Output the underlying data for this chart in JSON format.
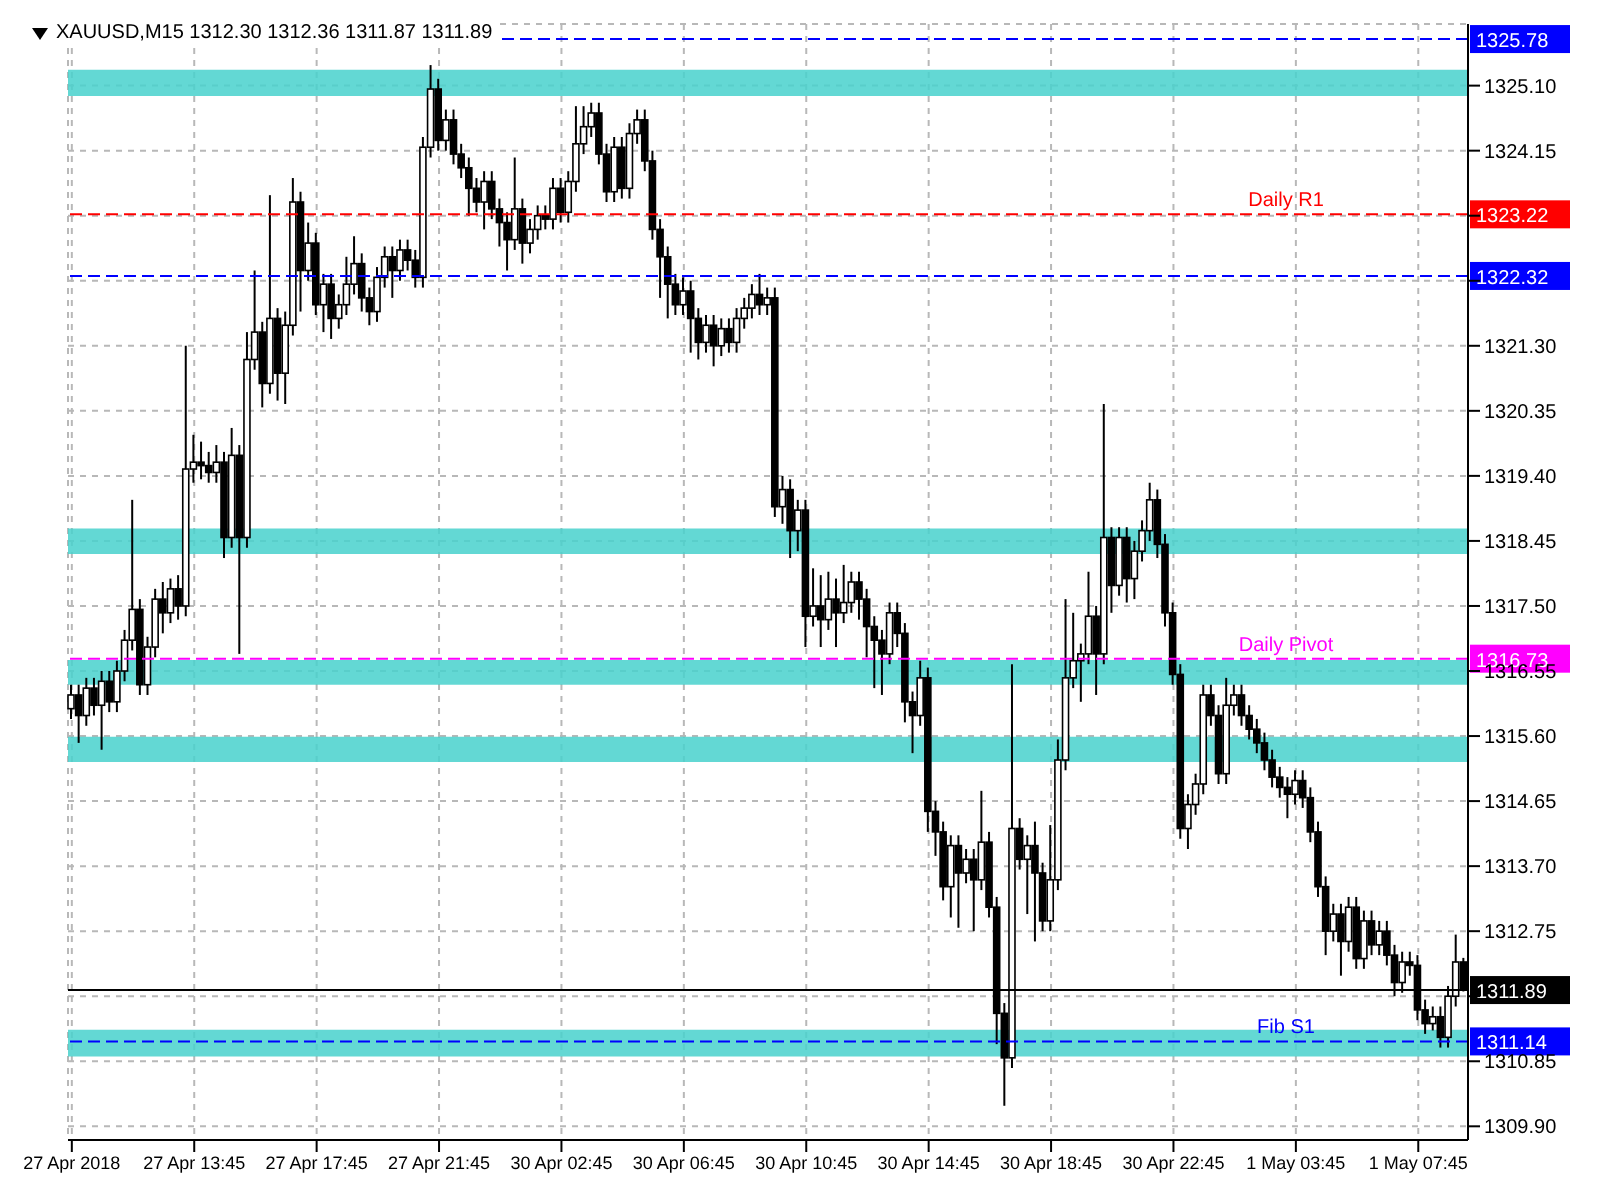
{
  "chart_data": {
    "type": "candlestick",
    "title": "XAUUSD,M15 1312.30 1312.36 1311.87 1311.89",
    "categories": [
      "27 Apr 2018",
      null,
      null,
      null,
      null,
      null,
      null,
      null,
      null,
      null,
      null,
      null,
      null,
      null,
      null,
      null,
      "27 Apr 13:45",
      null,
      null,
      null,
      null,
      null,
      null,
      null,
      null,
      null,
      null,
      null,
      null,
      null,
      null,
      null,
      "27 Apr 17:45",
      null,
      null,
      null,
      null,
      null,
      null,
      null,
      null,
      null,
      null,
      null,
      null,
      null,
      null,
      null,
      "27 Apr 21:45",
      null,
      null,
      null,
      null,
      null,
      null,
      null,
      null,
      null,
      null,
      null,
      null,
      null,
      null,
      null,
      "30 Apr 02:45",
      null,
      null,
      null,
      null,
      null,
      null,
      null,
      null,
      null,
      null,
      null,
      null,
      null,
      null,
      null,
      "30 Apr 06:45",
      null,
      null,
      null,
      null,
      null,
      null,
      null,
      null,
      null,
      null,
      null,
      null,
      null,
      null,
      null,
      "30 Apr 10:45",
      null,
      null,
      null,
      null,
      null,
      null,
      null,
      null,
      null,
      null,
      null,
      null,
      null,
      null,
      null,
      "30 Apr 14:45",
      null,
      null,
      null,
      null,
      null,
      null,
      null,
      null,
      null,
      null,
      null,
      null,
      null,
      null,
      null,
      "30 Apr 18:45",
      null,
      null,
      null,
      null,
      null,
      null,
      null,
      null,
      null,
      null,
      null,
      null,
      null,
      null,
      null,
      "30 Apr 22:45",
      null,
      null,
      null,
      null,
      null,
      null,
      null,
      null,
      null,
      null,
      null,
      null,
      null,
      null,
      null,
      "1 May 03:45",
      null,
      null,
      null,
      null,
      null,
      null,
      null,
      null,
      null,
      null,
      null,
      null,
      null,
      null,
      null,
      "1 May 07:45",
      null,
      null,
      null,
      null,
      null,
      null
    ],
    "ohlc": [
      [
        1316.0,
        1316.35,
        1315.85,
        1316.2
      ],
      [
        1316.2,
        1316.35,
        1315.5,
        1315.9
      ],
      [
        1315.9,
        1316.45,
        1315.75,
        1316.3
      ],
      [
        1316.3,
        1316.45,
        1315.9,
        1316.05
      ],
      [
        1316.05,
        1316.55,
        1315.4,
        1316.4
      ],
      [
        1316.4,
        1316.55,
        1315.95,
        1316.1
      ],
      [
        1316.1,
        1316.7,
        1315.95,
        1316.55
      ],
      [
        1316.55,
        1317.15,
        1316.4,
        1317.0
      ],
      [
        1317.0,
        1319.05,
        1316.85,
        1317.45
      ],
      [
        1317.45,
        1317.6,
        1316.2,
        1316.35
      ],
      [
        1316.35,
        1317.05,
        1316.2,
        1316.9
      ],
      [
        1316.9,
        1317.75,
        1316.75,
        1317.6
      ],
      [
        1317.6,
        1317.85,
        1317.1,
        1317.4
      ],
      [
        1317.4,
        1317.9,
        1317.25,
        1317.75
      ],
      [
        1317.75,
        1317.95,
        1317.3,
        1317.5
      ],
      [
        1317.5,
        1321.3,
        1317.35,
        1319.5
      ],
      [
        1319.5,
        1320.0,
        1319.3,
        1319.6
      ],
      [
        1319.6,
        1319.9,
        1319.35,
        1319.55
      ],
      [
        1319.55,
        1319.75,
        1319.3,
        1319.45
      ],
      [
        1319.45,
        1319.85,
        1319.3,
        1319.6
      ],
      [
        1319.6,
        1319.75,
        1318.2,
        1318.5
      ],
      [
        1318.5,
        1320.1,
        1318.35,
        1319.7
      ],
      [
        1319.7,
        1319.85,
        1316.8,
        1318.5
      ],
      [
        1318.5,
        1321.5,
        1318.35,
        1321.1
      ],
      [
        1321.1,
        1322.4,
        1320.95,
        1321.5
      ],
      [
        1321.5,
        1321.65,
        1320.4,
        1320.75
      ],
      [
        1320.75,
        1323.5,
        1320.6,
        1321.7
      ],
      [
        1321.7,
        1321.85,
        1320.5,
        1320.9
      ],
      [
        1320.9,
        1321.8,
        1320.45,
        1321.6
      ],
      [
        1321.6,
        1323.75,
        1321.45,
        1323.4
      ],
      [
        1323.4,
        1323.55,
        1321.8,
        1322.4
      ],
      [
        1322.4,
        1323.1,
        1322.25,
        1322.8
      ],
      [
        1322.8,
        1322.95,
        1321.75,
        1321.9
      ],
      [
        1321.9,
        1322.35,
        1321.5,
        1322.2
      ],
      [
        1322.2,
        1322.35,
        1321.4,
        1321.7
      ],
      [
        1321.7,
        1322.05,
        1321.55,
        1321.9
      ],
      [
        1321.9,
        1322.6,
        1321.75,
        1322.2
      ],
      [
        1322.2,
        1322.9,
        1322.05,
        1322.5
      ],
      [
        1322.5,
        1322.65,
        1321.8,
        1322.0
      ],
      [
        1322.0,
        1322.15,
        1321.6,
        1321.8
      ],
      [
        1321.8,
        1322.45,
        1321.65,
        1322.3
      ],
      [
        1322.3,
        1322.75,
        1322.15,
        1322.6
      ],
      [
        1322.6,
        1322.75,
        1322.0,
        1322.4
      ],
      [
        1322.4,
        1322.85,
        1322.25,
        1322.7
      ],
      [
        1322.7,
        1322.85,
        1322.4,
        1322.55
      ],
      [
        1322.55,
        1322.7,
        1322.15,
        1322.3
      ],
      [
        1322.3,
        1324.35,
        1322.15,
        1324.2
      ],
      [
        1324.2,
        1325.4,
        1324.05,
        1325.05
      ],
      [
        1325.05,
        1325.2,
        1324.15,
        1324.3
      ],
      [
        1324.3,
        1324.75,
        1324.15,
        1324.6
      ],
      [
        1324.6,
        1324.75,
        1323.95,
        1324.1
      ],
      [
        1324.1,
        1324.25,
        1323.75,
        1323.9
      ],
      [
        1323.9,
        1324.05,
        1323.2,
        1323.6
      ],
      [
        1323.6,
        1323.75,
        1323.25,
        1323.4
      ],
      [
        1323.4,
        1323.85,
        1323.0,
        1323.7
      ],
      [
        1323.7,
        1323.85,
        1323.15,
        1323.3
      ],
      [
        1323.3,
        1323.45,
        1322.75,
        1323.1
      ],
      [
        1323.1,
        1323.25,
        1322.4,
        1322.85
      ],
      [
        1322.85,
        1324.05,
        1322.7,
        1323.3
      ],
      [
        1323.3,
        1323.45,
        1322.5,
        1322.8
      ],
      [
        1322.8,
        1323.15,
        1322.65,
        1323.0
      ],
      [
        1323.0,
        1323.35,
        1322.85,
        1323.2
      ],
      [
        1323.2,
        1323.35,
        1323.0,
        1323.15
      ],
      [
        1323.15,
        1323.75,
        1323.0,
        1323.6
      ],
      [
        1323.6,
        1323.75,
        1323.1,
        1323.25
      ],
      [
        1323.25,
        1323.85,
        1323.1,
        1323.7
      ],
      [
        1323.7,
        1324.8,
        1323.55,
        1324.25
      ],
      [
        1324.25,
        1324.8,
        1324.1,
        1324.5
      ],
      [
        1324.5,
        1324.85,
        1324.35,
        1324.7
      ],
      [
        1324.7,
        1324.85,
        1323.95,
        1324.1
      ],
      [
        1324.1,
        1324.25,
        1323.4,
        1323.55
      ],
      [
        1323.55,
        1324.35,
        1323.4,
        1324.2
      ],
      [
        1324.2,
        1324.35,
        1323.45,
        1323.6
      ],
      [
        1323.6,
        1324.55,
        1323.45,
        1324.4
      ],
      [
        1324.4,
        1324.75,
        1324.25,
        1324.6
      ],
      [
        1324.6,
        1324.75,
        1323.85,
        1324.0
      ],
      [
        1324.0,
        1324.15,
        1322.85,
        1323.0
      ],
      [
        1323.0,
        1323.15,
        1322.0,
        1322.6
      ],
      [
        1322.6,
        1322.75,
        1321.7,
        1322.2
      ],
      [
        1322.2,
        1322.35,
        1321.75,
        1321.9
      ],
      [
        1321.9,
        1322.3,
        1321.75,
        1322.1
      ],
      [
        1322.1,
        1322.25,
        1321.2,
        1321.7
      ],
      [
        1321.7,
        1321.85,
        1321.1,
        1321.35
      ],
      [
        1321.35,
        1321.75,
        1321.2,
        1321.6
      ],
      [
        1321.6,
        1321.75,
        1321.0,
        1321.3
      ],
      [
        1321.3,
        1321.7,
        1321.15,
        1321.55
      ],
      [
        1321.55,
        1321.7,
        1321.2,
        1321.35
      ],
      [
        1321.35,
        1321.85,
        1321.2,
        1321.7
      ],
      [
        1321.7,
        1322.0,
        1321.55,
        1321.85
      ],
      [
        1321.85,
        1322.2,
        1321.7,
        1322.05
      ],
      [
        1322.05,
        1322.35,
        1321.75,
        1321.9
      ],
      [
        1321.9,
        1322.15,
        1321.75,
        1322.0
      ],
      [
        1322.0,
        1322.15,
        1318.8,
        1318.95
      ],
      [
        1318.95,
        1319.4,
        1318.7,
        1319.2
      ],
      [
        1319.2,
        1319.35,
        1318.2,
        1318.6
      ],
      [
        1318.6,
        1319.05,
        1318.3,
        1318.9
      ],
      [
        1318.9,
        1319.05,
        1316.9,
        1317.35
      ],
      [
        1317.35,
        1318.05,
        1317.2,
        1317.5
      ],
      [
        1317.5,
        1317.95,
        1316.9,
        1317.3
      ],
      [
        1317.3,
        1318.0,
        1317.15,
        1317.6
      ],
      [
        1317.6,
        1317.9,
        1316.9,
        1317.4
      ],
      [
        1317.4,
        1318.1,
        1317.25,
        1317.55
      ],
      [
        1317.55,
        1318.0,
        1317.4,
        1317.85
      ],
      [
        1317.85,
        1318.0,
        1317.3,
        1317.6
      ],
      [
        1317.6,
        1317.75,
        1316.75,
        1317.2
      ],
      [
        1317.2,
        1317.35,
        1316.3,
        1317.0
      ],
      [
        1317.0,
        1317.15,
        1316.2,
        1316.8
      ],
      [
        1316.8,
        1317.55,
        1316.65,
        1317.4
      ],
      [
        1317.4,
        1317.55,
        1316.9,
        1317.1
      ],
      [
        1317.1,
        1317.25,
        1315.8,
        1316.1
      ],
      [
        1316.1,
        1316.25,
        1315.35,
        1315.9
      ],
      [
        1315.9,
        1316.7,
        1315.75,
        1316.45
      ],
      [
        1316.45,
        1316.6,
        1314.2,
        1314.5
      ],
      [
        1314.5,
        1314.65,
        1313.85,
        1314.2
      ],
      [
        1314.2,
        1314.35,
        1313.2,
        1313.4
      ],
      [
        1313.4,
        1314.15,
        1312.95,
        1314.0
      ],
      [
        1314.0,
        1314.15,
        1312.8,
        1313.6
      ],
      [
        1313.6,
        1313.95,
        1313.45,
        1313.8
      ],
      [
        1313.8,
        1313.95,
        1312.75,
        1313.5
      ],
      [
        1313.5,
        1314.8,
        1313.35,
        1314.05
      ],
      [
        1314.05,
        1314.2,
        1312.95,
        1313.1
      ],
      [
        1313.1,
        1313.25,
        1311.1,
        1311.55
      ],
      [
        1311.55,
        1311.7,
        1310.2,
        1310.9
      ],
      [
        1310.9,
        1316.65,
        1310.75,
        1314.25
      ],
      [
        1314.25,
        1314.4,
        1313.65,
        1313.8
      ],
      [
        1313.8,
        1314.15,
        1313.0,
        1314.0
      ],
      [
        1314.0,
        1314.35,
        1312.6,
        1313.6
      ],
      [
        1313.6,
        1313.75,
        1312.75,
        1312.9
      ],
      [
        1312.9,
        1314.3,
        1312.75,
        1313.5
      ],
      [
        1313.5,
        1315.55,
        1313.35,
        1315.25
      ],
      [
        1315.25,
        1317.6,
        1315.1,
        1316.45
      ],
      [
        1316.45,
        1317.4,
        1316.3,
        1316.7
      ],
      [
        1316.7,
        1316.95,
        1316.1,
        1316.8
      ],
      [
        1316.8,
        1318.0,
        1316.65,
        1317.35
      ],
      [
        1317.35,
        1317.5,
        1316.2,
        1316.8
      ],
      [
        1316.8,
        1320.45,
        1316.65,
        1318.5
      ],
      [
        1318.5,
        1318.65,
        1317.4,
        1317.8
      ],
      [
        1317.8,
        1318.65,
        1317.65,
        1318.5
      ],
      [
        1318.5,
        1318.65,
        1317.55,
        1317.9
      ],
      [
        1317.9,
        1318.45,
        1317.6,
        1318.3
      ],
      [
        1318.3,
        1318.75,
        1318.15,
        1318.6
      ],
      [
        1318.6,
        1319.3,
        1318.45,
        1319.05
      ],
      [
        1319.05,
        1319.2,
        1318.2,
        1318.4
      ],
      [
        1318.4,
        1318.55,
        1317.2,
        1317.4
      ],
      [
        1317.4,
        1317.55,
        1316.35,
        1316.5
      ],
      [
        1316.5,
        1316.65,
        1314.1,
        1314.25
      ],
      [
        1314.25,
        1314.75,
        1313.95,
        1314.6
      ],
      [
        1314.6,
        1315.05,
        1314.45,
        1314.9
      ],
      [
        1314.9,
        1316.35,
        1314.75,
        1316.2
      ],
      [
        1316.2,
        1316.35,
        1315.75,
        1315.9
      ],
      [
        1315.9,
        1316.05,
        1314.9,
        1315.05
      ],
      [
        1315.05,
        1316.45,
        1314.9,
        1316.05
      ],
      [
        1316.05,
        1316.35,
        1315.9,
        1316.2
      ],
      [
        1316.2,
        1316.35,
        1315.75,
        1315.9
      ],
      [
        1315.9,
        1316.05,
        1315.55,
        1315.7
      ],
      [
        1315.7,
        1315.85,
        1315.35,
        1315.5
      ],
      [
        1315.5,
        1315.65,
        1315.1,
        1315.25
      ],
      [
        1315.25,
        1315.4,
        1314.85,
        1315.0
      ],
      [
        1315.0,
        1315.15,
        1314.7,
        1314.85
      ],
      [
        1314.85,
        1315.0,
        1314.4,
        1314.75
      ],
      [
        1314.75,
        1315.1,
        1314.6,
        1314.95
      ],
      [
        1314.95,
        1315.1,
        1314.55,
        1314.7
      ],
      [
        1314.7,
        1314.85,
        1314.05,
        1314.2
      ],
      [
        1314.2,
        1314.35,
        1313.25,
        1313.4
      ],
      [
        1313.4,
        1313.55,
        1312.4,
        1312.75
      ],
      [
        1312.75,
        1313.15,
        1312.6,
        1313.0
      ],
      [
        1313.0,
        1313.15,
        1312.1,
        1312.6
      ],
      [
        1312.6,
        1313.25,
        1312.45,
        1313.1
      ],
      [
        1313.1,
        1313.25,
        1312.2,
        1312.35
      ],
      [
        1312.35,
        1313.05,
        1312.2,
        1312.9
      ],
      [
        1312.9,
        1313.05,
        1312.4,
        1312.55
      ],
      [
        1312.55,
        1312.9,
        1312.4,
        1312.75
      ],
      [
        1312.75,
        1312.9,
        1312.25,
        1312.4
      ],
      [
        1312.4,
        1312.55,
        1311.8,
        1312.0
      ],
      [
        1312.0,
        1312.45,
        1311.85,
        1312.3
      ],
      [
        1312.3,
        1312.45,
        1312.1,
        1312.25
      ],
      [
        1312.25,
        1312.4,
        1311.45,
        1311.6
      ],
      [
        1311.6,
        1311.75,
        1311.25,
        1311.4
      ],
      [
        1311.4,
        1311.65,
        1311.3,
        1311.5
      ],
      [
        1311.5,
        1311.65,
        1311.05,
        1311.2
      ],
      [
        1311.2,
        1311.95,
        1311.05,
        1311.8
      ],
      [
        1311.8,
        1312.7,
        1311.65,
        1312.3
      ],
      [
        1312.3,
        1312.36,
        1311.87,
        1311.89
      ]
    ],
    "ylim": [
      1309.7,
      1326.0
    ],
    "yticks": [
      {
        "value": 1309.9,
        "label": "1309.90"
      },
      {
        "value": 1310.85,
        "label": "1310.85"
      },
      {
        "value": 1311.8,
        "label": null
      },
      {
        "value": 1312.75,
        "label": "1312.75"
      },
      {
        "value": 1313.7,
        "label": "1313.70"
      },
      {
        "value": 1314.65,
        "label": "1314.65"
      },
      {
        "value": 1315.6,
        "label": "1315.60"
      },
      {
        "value": 1316.55,
        "label": "1316.55"
      },
      {
        "value": 1317.5,
        "label": "1317.50"
      },
      {
        "value": 1318.45,
        "label": "1318.45"
      },
      {
        "value": 1319.4,
        "label": "1319.40"
      },
      {
        "value": 1320.35,
        "label": "1320.35"
      },
      {
        "value": 1321.3,
        "label": "1321.30"
      },
      {
        "value": 1322.25,
        "label": null
      },
      {
        "value": 1323.2,
        "label": null
      },
      {
        "value": 1324.15,
        "label": "1324.15"
      },
      {
        "value": 1325.1,
        "label": "1325.10"
      }
    ],
    "grid": true,
    "bands": [
      {
        "axis": "y",
        "from": 1324.95,
        "to": 1325.33,
        "color": "#48d1cc"
      },
      {
        "axis": "y",
        "from": 1318.26,
        "to": 1318.63,
        "color": "#48d1cc"
      },
      {
        "axis": "y",
        "from": 1316.35,
        "to": 1316.71,
        "color": "#48d1cc"
      },
      {
        "axis": "y",
        "from": 1315.22,
        "to": 1315.59,
        "color": "#48d1cc"
      },
      {
        "axis": "y",
        "from": 1310.92,
        "to": 1311.31,
        "color": "#48d1cc"
      }
    ],
    "ref_lines": [
      {
        "axis": "y",
        "value": 1325.78,
        "label": "1325.78",
        "color": "#0000ff",
        "line_style": "dashed"
      },
      {
        "axis": "y",
        "value": 1323.22,
        "label": "1323.22",
        "color": "#ff0000",
        "line_style": "dashed"
      },
      {
        "axis": "y",
        "value": 1322.32,
        "label": "1322.32",
        "color": "#0000ff",
        "line_style": "dashed"
      },
      {
        "axis": "y",
        "value": 1316.73,
        "label": "1316.73",
        "color": "#ff00ff",
        "line_style": "dashed"
      },
      {
        "axis": "y",
        "value": 1311.89,
        "label": "1311.89",
        "color": "#000000",
        "line_style": "solid"
      },
      {
        "axis": "y",
        "value": 1311.14,
        "label": "1311.14",
        "color": "#0000ff",
        "line_style": "dashed"
      }
    ],
    "annotations": [
      {
        "text": "Daily R1",
        "y": 1323.22
      },
      {
        "text": "Daily Pivot",
        "y": 1316.73
      },
      {
        "text": "Fib S1",
        "y": 1311.14
      }
    ]
  }
}
